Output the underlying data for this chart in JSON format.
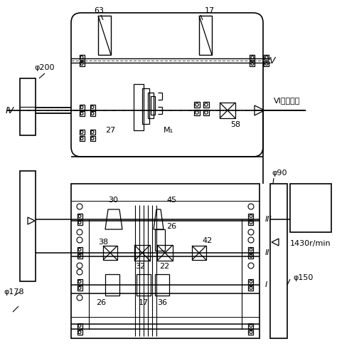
{
  "bg": "#ffffff",
  "lc": "#000000",
  "labels": {
    "phi200": "φ200",
    "phi178": "φ178",
    "phi90": "φ90",
    "phi150": "φ150",
    "rpm": "1430r/min",
    "IV": "IV",
    "V": "V",
    "VI_main": "VI（主轴）",
    "M1": "M₁",
    "n63": "63",
    "n17a": "17",
    "n27": "27",
    "n58": "58",
    "n30": "30",
    "n45": "45",
    "n26a": "26",
    "n38": "38",
    "n32": "32",
    "n22": "22",
    "n42": "42",
    "n26b": "26",
    "n36": "36",
    "n17b": "17",
    "I": "I",
    "II": "II",
    "III": "III"
  }
}
